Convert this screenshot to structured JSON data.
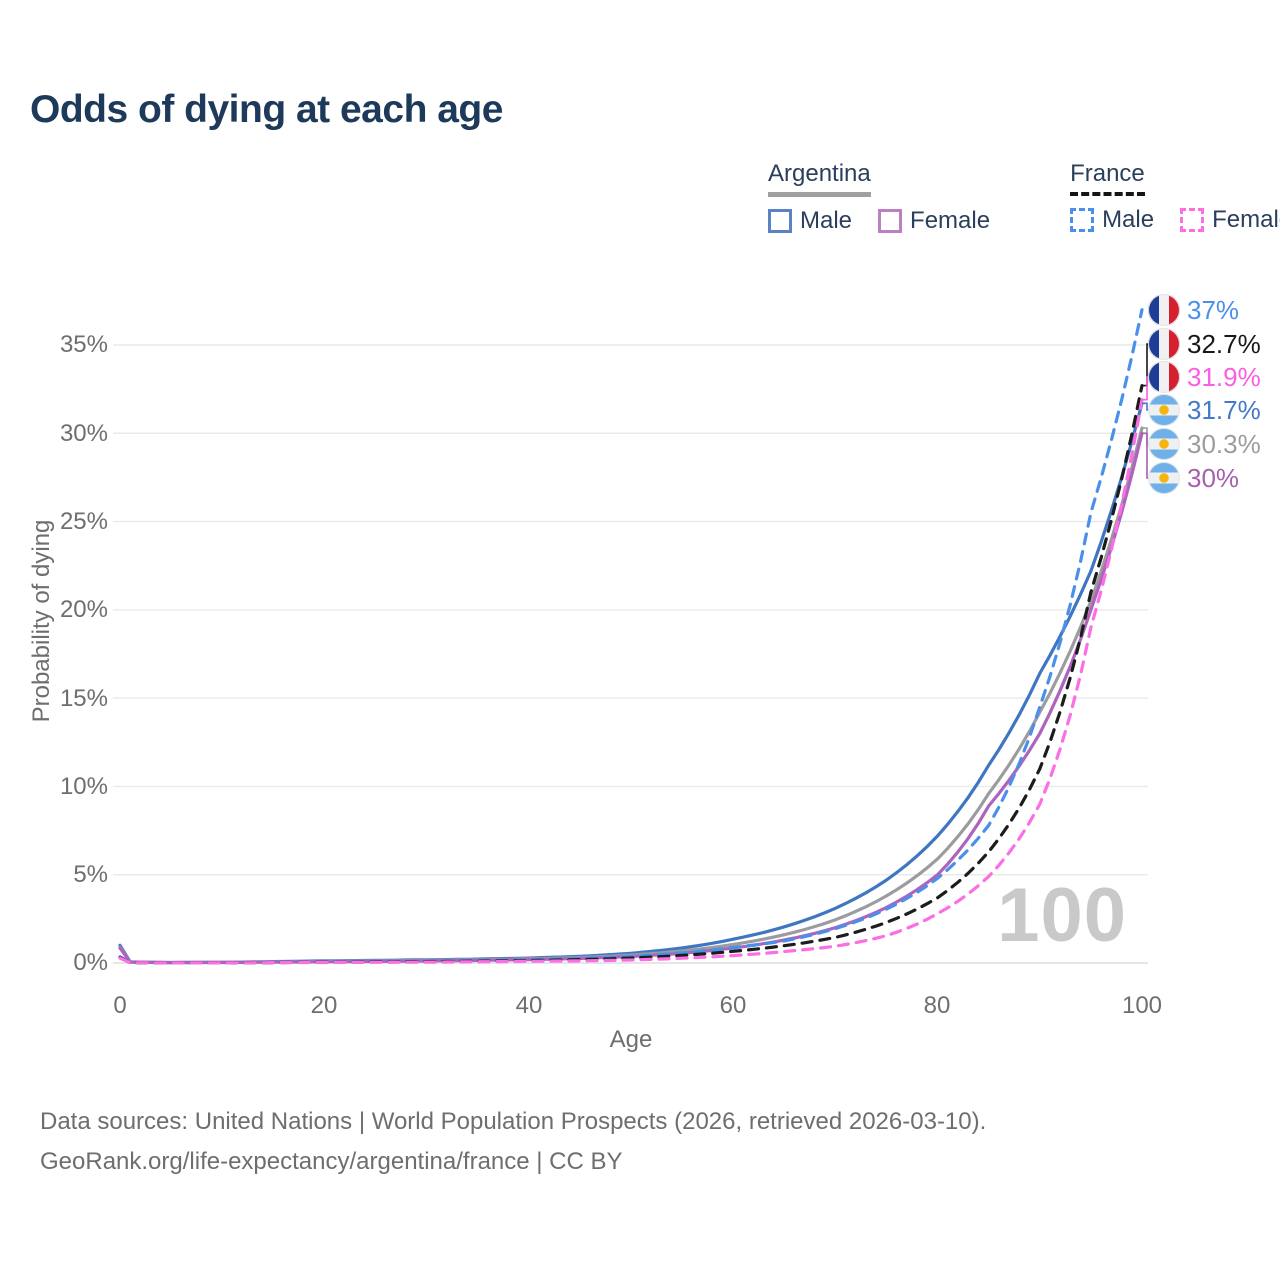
{
  "title": "Odds of dying at each age",
  "legend": {
    "groups": [
      {
        "label": "Argentina",
        "underline_style": "solid-gray",
        "items": [
          {
            "label": "Male",
            "color": "#3f76c2",
            "line_style": "solid"
          },
          {
            "label": "Female",
            "color": "#ae63bd",
            "line_style": "solid"
          }
        ]
      },
      {
        "label": "France",
        "underline_style": "dashed-black",
        "items": [
          {
            "label": "Male",
            "color": "#4a90ea",
            "line_style": "dashed"
          },
          {
            "label": "Female",
            "color": "#fb6ee4",
            "line_style": "dashed"
          }
        ]
      }
    ]
  },
  "axes": {
    "y_title": "Probability of dying",
    "x_title": "Age",
    "y_ticks": [
      "0%",
      "5%",
      "10%",
      "15%",
      "20%",
      "25%",
      "30%",
      "35%"
    ],
    "x_ticks": [
      "0",
      "20",
      "40",
      "60",
      "80",
      "100"
    ]
  },
  "watermark_age": "100",
  "end_labels": [
    {
      "value": "37%",
      "flag": "france",
      "color": "#4a90ea"
    },
    {
      "value": "32.7%",
      "flag": "france",
      "color": "#181818"
    },
    {
      "value": "31.9%",
      "flag": "france",
      "color": "#f95fe2"
    },
    {
      "value": "31.7%",
      "flag": "argentina",
      "color": "#4479c8"
    },
    {
      "value": "30.3%",
      "flag": "argentina",
      "color": "#9c9ca0"
    },
    {
      "value": "30%",
      "flag": "argentina",
      "color": "#a95fb0"
    }
  ],
  "footer": {
    "line1": "Data sources: United Nations | World Population Prospects (2026, retrieved 2026-03-10).",
    "line2": "GeoRank.org/life-expectancy/argentina/france | CC BY"
  },
  "chart_data": {
    "type": "line",
    "title": "Odds of dying at each age",
    "xlabel": "Age",
    "ylabel": "Probability of dying",
    "x_range": [
      0,
      100
    ],
    "y_range_pct": [
      0,
      37
    ],
    "grid": "horizontal-only",
    "legend_position": "top-right",
    "x": [
      0,
      1,
      5,
      10,
      15,
      20,
      25,
      30,
      35,
      40,
      45,
      50,
      55,
      60,
      65,
      70,
      75,
      80,
      85,
      90,
      95,
      100
    ],
    "series": [
      {
        "name": "Argentina male",
        "country": "Argentina",
        "sex": "male",
        "line_style": "solid",
        "color": "#3f76c2",
        "end_value_pct": 31.7,
        "values_pct": [
          1.0,
          0.06,
          0.03,
          0.04,
          0.08,
          0.12,
          0.15,
          0.18,
          0.22,
          0.28,
          0.38,
          0.55,
          0.85,
          1.35,
          2.05,
          3.1,
          4.7,
          7.2,
          11.2,
          16.4,
          22.2,
          31.7
        ]
      },
      {
        "name": "Argentina all",
        "country": "Argentina",
        "sex": "all",
        "line_style": "solid",
        "color": "#9c9ca0",
        "end_value_pct": 30.3,
        "values_pct": [
          0.9,
          0.055,
          0.025,
          0.035,
          0.06,
          0.09,
          0.12,
          0.15,
          0.18,
          0.23,
          0.31,
          0.45,
          0.68,
          1.05,
          1.6,
          2.45,
          3.8,
          5.9,
          9.6,
          14.2,
          20.5,
          30.3
        ]
      },
      {
        "name": "Argentina female",
        "country": "Argentina",
        "sex": "female",
        "line_style": "solid",
        "color": "#ae63bd",
        "end_value_pct": 30.0,
        "values_pct": [
          0.85,
          0.05,
          0.02,
          0.03,
          0.05,
          0.07,
          0.09,
          0.12,
          0.15,
          0.19,
          0.26,
          0.37,
          0.55,
          0.85,
          1.3,
          2.0,
          3.15,
          5.0,
          8.9,
          13.0,
          20.0,
          30.0
        ]
      },
      {
        "name": "France male",
        "country": "France",
        "sex": "male",
        "line_style": "dashed",
        "color": "#4a90ea",
        "end_value_pct": 37.0,
        "values_pct": [
          0.35,
          0.03,
          0.01,
          0.01,
          0.03,
          0.06,
          0.08,
          0.1,
          0.13,
          0.18,
          0.25,
          0.38,
          0.58,
          0.88,
          1.25,
          1.95,
          3.05,
          4.8,
          7.8,
          14.5,
          25.5,
          37.0
        ]
      },
      {
        "name": "France all",
        "country": "France",
        "sex": "all",
        "line_style": "dashed",
        "color": "#1c1c1c",
        "end_value_pct": 32.7,
        "values_pct": [
          0.3,
          0.025,
          0.01,
          0.01,
          0.025,
          0.045,
          0.06,
          0.08,
          0.1,
          0.14,
          0.19,
          0.28,
          0.43,
          0.66,
          0.98,
          1.45,
          2.3,
          3.7,
          6.3,
          11.0,
          21.0,
          32.7
        ]
      },
      {
        "name": "France female",
        "country": "France",
        "sex": "female",
        "line_style": "dashed",
        "color": "#fb6ee4",
        "end_value_pct": 31.9,
        "values_pct": [
          0.28,
          0.02,
          0.008,
          0.008,
          0.02,
          0.03,
          0.04,
          0.05,
          0.07,
          0.1,
          0.12,
          0.17,
          0.27,
          0.42,
          0.65,
          0.95,
          1.55,
          2.8,
          4.9,
          9.0,
          19.0,
          31.9
        ]
      }
    ]
  }
}
